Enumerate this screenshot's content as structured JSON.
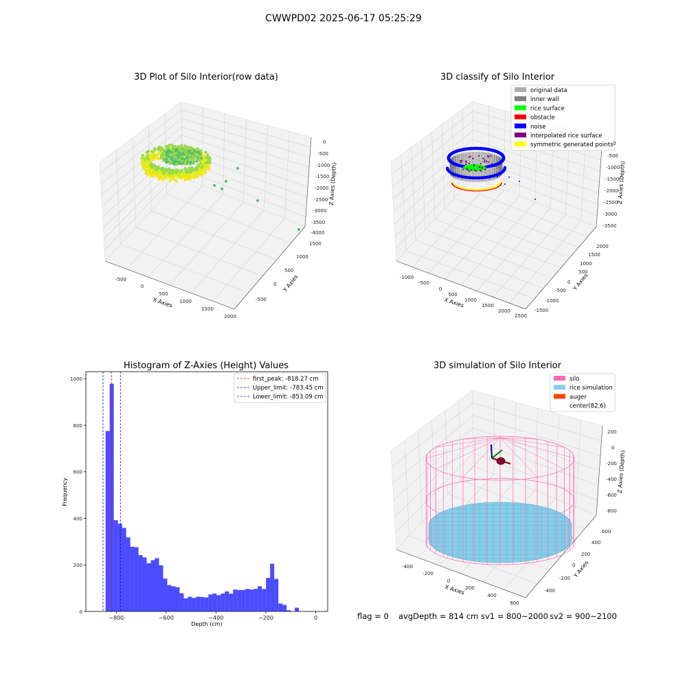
{
  "figure": {
    "suptitle": "CWWPD02 2025-06-17 05:25:29",
    "footer": {
      "flag": "flag = 0",
      "avg_depth": "avgDepth = 814 cm",
      "sv1": "sv1 = 800~2000",
      "sv2": "sv2 = 900~2100"
    }
  },
  "chart_data": [
    {
      "type": "scatter",
      "title": "3D Plot of Silo Interior(row data)",
      "xlabel": "X Axies",
      "ylabel": "Y Axies",
      "zlabel": "Z Axies (Depth)",
      "x_ticks": [
        "-500",
        "0",
        "500",
        "1000",
        "1500",
        "2000"
      ],
      "y_ticks": [
        "-500",
        "0",
        "500",
        "1000",
        "1500"
      ],
      "z_ticks": [
        "0",
        "-500",
        "-1000",
        "-1500",
        "-2000",
        "-2500",
        "-3000",
        "-3500",
        "-4000"
      ],
      "colormap": [
        "#9bd84a",
        "#d9ef1f",
        "#f5e61d",
        "#4cbe74"
      ]
    },
    {
      "type": "scatter",
      "title": "3D classify of Silo Interior",
      "xlabel": "X Axies",
      "ylabel": "Y Axies",
      "zlabel": "Z Axies (Depth)",
      "x_ticks": [
        "-1000",
        "-500",
        "0",
        "500",
        "1000",
        "1500",
        "2000",
        "2500"
      ],
      "y_ticks": [
        "-1500",
        "-1000",
        "-500",
        "0",
        "500",
        "1000",
        "1500",
        "2000"
      ],
      "z_ticks": [
        "0",
        "-500",
        "-1000",
        "-1500",
        "-2000",
        "-2500",
        "-3000",
        "-3500"
      ],
      "legend": [
        {
          "label": "original data",
          "color": "#b0b0b0"
        },
        {
          "label": "inner wall",
          "color": "#808080"
        },
        {
          "label": "rice surface",
          "color": "#00ff00"
        },
        {
          "label": "obstacle",
          "color": "#ff0000"
        },
        {
          "label": "noise",
          "color": "#0000ff"
        },
        {
          "label": "interpolated rice surface",
          "color": "#800080"
        },
        {
          "label": "symmetric generated points",
          "color": "#ffff00"
        }
      ]
    },
    {
      "type": "bar",
      "title": "Histogram of Z-Axies (Height) Values",
      "xlabel": "Depth (cm)",
      "ylabel": "Frequency",
      "xlim": [
        -922,
        48
      ],
      "ylim": [
        0,
        1030
      ],
      "x_ticks": [
        -800,
        -600,
        -400,
        -200,
        0
      ],
      "y_ticks": [
        0,
        200,
        400,
        600,
        800,
        1000
      ],
      "bar_color": "#0000ff",
      "bins": {
        "start": -843,
        "width": 16.5,
        "values": [
          775,
          978,
          392,
          377,
          359,
          318,
          278,
          276,
          242,
          232,
          207,
          220,
          229,
          198,
          141,
          113,
          108,
          104,
          78,
          56,
          63,
          58,
          63,
          62,
          60,
          73,
          77,
          70,
          77,
          86,
          76,
          94,
          92,
          92,
          97,
          94,
          97,
          108,
          96,
          144,
          205,
          140,
          34,
          28,
          5,
          0,
          16
        ]
      },
      "lines": [
        {
          "label": "first_peak: -818.27 cm",
          "x": -818.27,
          "color": "#ff0000"
        },
        {
          "label": "Upper_limit: -783.45 cm",
          "x": -783.45,
          "color": "#0000ff"
        },
        {
          "label": "Lower_limit: -853.09 cm",
          "x": -853.09,
          "color": "#0000ff"
        }
      ]
    },
    {
      "type": "scatter",
      "title": "3D simulation of Silo Interior",
      "xlabel": "X Axies",
      "ylabel": "Y Axies",
      "zlabel": "Z Axies (Depth)",
      "x_ticks": [
        "-400",
        "-200",
        "0",
        "200",
        "400",
        "600"
      ],
      "y_ticks": [
        "-400",
        "-200",
        "0",
        "200",
        "400",
        "600"
      ],
      "z_ticks": [
        "200",
        "0",
        "-200",
        "-400",
        "-600",
        "-800"
      ],
      "legend": [
        {
          "label": "silo",
          "color": "#ff69b4"
        },
        {
          "label": "rice simulation",
          "color": "#87ceeb"
        },
        {
          "label": "auger",
          "color": "#ff4500"
        },
        {
          "label": "center(82,6)",
          "color": ""
        }
      ]
    }
  ]
}
